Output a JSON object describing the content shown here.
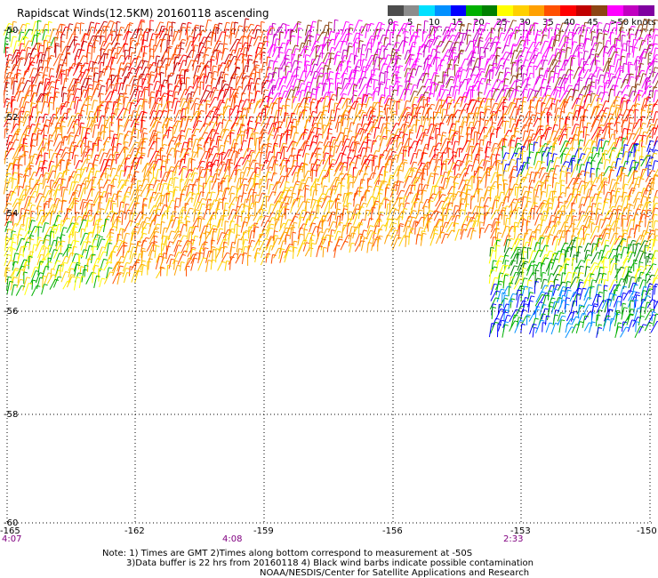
{
  "title": "Rapidscat Winds(12.5KM) 20160118 ascending",
  "legend": {
    "colors": [
      "#4c4c4c",
      "#8c8c8c",
      "#00e0ff",
      "#0090ff",
      "#0000ff",
      "#00b000",
      "#008000",
      "#ffff00",
      "#ffd000",
      "#ffa000",
      "#ff5000",
      "#ff0000",
      "#c00000",
      "#8b4513",
      "#ff00ff",
      "#c000c0",
      "#8000a0"
    ],
    "labels": [
      "0",
      "5",
      "10",
      "15",
      "20",
      "25",
      "30",
      "35",
      "40",
      "45",
      ">50 knots"
    ]
  },
  "lat_labels": [
    "-50",
    "-52",
    "-54",
    "-56",
    "-58",
    "-60"
  ],
  "lon_labels": [
    "-165",
    "-162",
    "-159",
    "-156",
    "-153",
    "-150"
  ],
  "time_labels": [
    "4:07",
    "4:08",
    "2:33"
  ],
  "notes": [
    "Note: 1) Times are GMT 2)Times along bottom correspond to measurement at -50S",
    "3)Data buffer is 22 hrs from 20160118 4) Black wind barbs indicate possible contamination",
    "NOAA/NESDIS/Center for Satellite Applications and Research"
  ]
}
